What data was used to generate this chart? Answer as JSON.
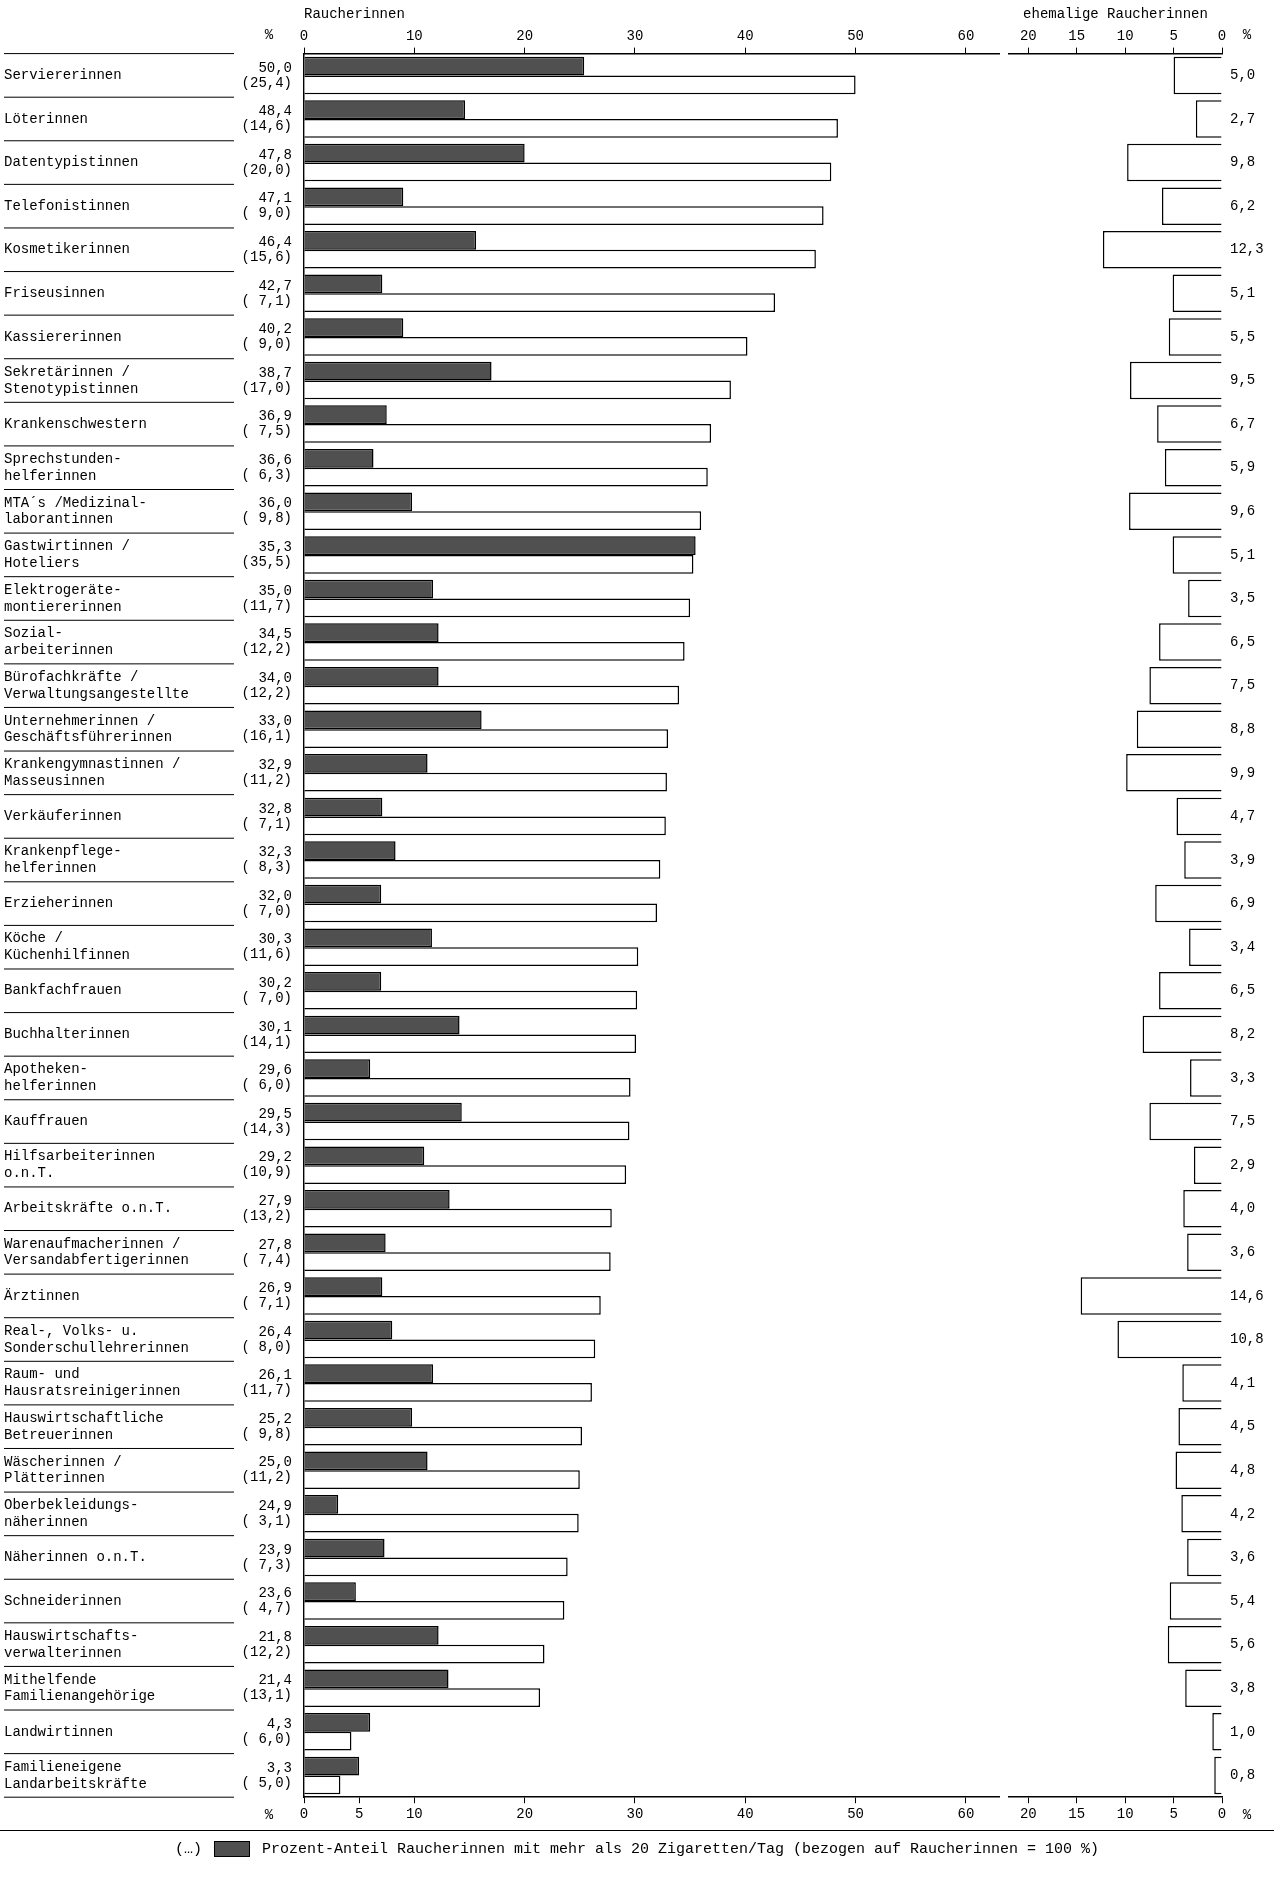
{
  "chart_data": [
    {
      "type": "bar",
      "orientation": "horizontal",
      "x2label": "Raucherinnen",
      "categories": [
        "Serviererinnen",
        "Löterinnen",
        "Datentypistinnen",
        "Telefonistinnen",
        "Kosmetikerinnen",
        "Friseusinnen",
        "Kassiererinnen",
        "Sekretärinnen /\nStenotypistinnen",
        "Krankenschwestern",
        "Sprechstunden-\nhelferinnen",
        "MTA´s /Medizinal-\nlaborantinnen",
        "Gastwirtinnen /\nHoteliers",
        "Elektrogeräte-\nmontiererinnen",
        "Sozial-\narbeiterinnen",
        "Bürofachkräfte /\nVerwaltungsangestellte",
        "Unternehmerinnen /\nGeschäftsführerinnen",
        "Krankengymnastinnen /\nMasseusinnen",
        "Verkäuferinnen",
        "Krankenpflege-\nhelferinnen",
        "Erzieherinnen",
        "Köche /\nKüchenhilfinnen",
        "Bankfachfrauen",
        "Buchhalterinnen",
        "Apotheken-\nhelferinnen",
        "Kauffrauen",
        "Hilfsarbeiterinnen\no.n.T.",
        "Arbeitskräfte o.n.T.",
        "Warenaufmacherinnen /\nVersandabfertigerinnen",
        "Ärztinnen",
        "Real-, Volks- u.\nSonderschullehrerinnen",
        "Raum- und\nHausratsreinigerinnen",
        "Hauswirtschaftliche\nBetreuerinnen",
        "Wäscherinnen /\nPlätterinnen",
        "Oberbekleidungs-\nnäherinnen",
        "Näherinnen o.n.T.",
        "Schneiderinnen",
        "Hauswirtschafts-\nverwalterinnen",
        "Mithelfende\nFamilienangehörige",
        "Landwirtinnen",
        "Familieneigene\nLandarbeitskräfte"
      ],
      "series": [
        {
          "color": "#ffffff",
          "values": [
            50.0,
            48.4,
            47.8,
            47.1,
            46.4,
            42.7,
            40.2,
            38.7,
            36.9,
            36.6,
            36.0,
            35.3,
            35.0,
            34.5,
            34.0,
            33.0,
            32.9,
            32.8,
            32.3,
            32.0,
            30.3,
            30.2,
            30.1,
            29.6,
            29.5,
            29.2,
            27.9,
            27.8,
            26.9,
            26.4,
            26.1,
            25.2,
            25.0,
            24.9,
            23.9,
            23.6,
            21.8,
            21.4,
            4.3,
            3.3
          ],
          "value_labels": [
            "50,0",
            "48,4",
            "47,8",
            "47,1",
            "46,4",
            "42,7",
            "40,2",
            "38,7",
            "36,9",
            "36,6",
            "36,0",
            "35,3",
            "35,0",
            "34,5",
            "34,0",
            "33,0",
            "32,9",
            "32,8",
            "32,3",
            "32,0",
            "30,3",
            "30,2",
            "30,1",
            "29,6",
            "29,5",
            "29,2",
            "27,9",
            "27,8",
            "26,9",
            "26,4",
            "26,1",
            "25,2",
            "25,0",
            "24,9",
            "23,9",
            "23,6",
            "21,8",
            "21,4",
            "4,3",
            "3,3"
          ]
        },
        {
          "name": "Prozent-Anteil Raucherinnen mit mehr als 20 Zigaretten/Tag (bezogen auf Raucherinnen = 100 %)",
          "color": "#505050",
          "values": [
            25.4,
            14.6,
            20.0,
            9.0,
            15.6,
            7.1,
            9.0,
            17.0,
            7.5,
            6.3,
            9.8,
            35.5,
            11.7,
            12.2,
            12.2,
            16.1,
            11.2,
            7.1,
            8.3,
            7.0,
            11.6,
            7.0,
            14.1,
            6.0,
            14.3,
            10.9,
            13.2,
            7.4,
            7.1,
            8.0,
            11.7,
            9.8,
            11.2,
            3.1,
            7.3,
            4.7,
            12.2,
            13.1,
            6.0,
            5.0
          ],
          "value_labels": [
            "(25,4)",
            "(14,6)",
            "(20,0)",
            "( 9,0)",
            "(15,6)",
            "( 7,1)",
            "( 9,0)",
            "(17,0)",
            "( 7,5)",
            "( 6,3)",
            "( 9,8)",
            "(35,5)",
            "(11,7)",
            "(12,2)",
            "(12,2)",
            "(16,1)",
            "(11,2)",
            "( 7,1)",
            "( 8,3)",
            "( 7,0)",
            "(11,6)",
            "( 7,0)",
            "(14,1)",
            "( 6,0)",
            "(14,3)",
            "(10,9)",
            "(13,2)",
            "( 7,4)",
            "( 7,1)",
            "( 8,0)",
            "(11,7)",
            "( 9,8)",
            "(11,2)",
            "( 3,1)",
            "( 7,3)",
            "( 4,7)",
            "(12,2)",
            "(13,1)",
            "( 6,0)",
            "( 5,0)"
          ]
        }
      ],
      "xlim": [
        0,
        63
      ],
      "xticks": [
        0,
        5,
        10,
        20,
        30,
        40,
        50,
        60
      ],
      "x2lim": [
        0,
        63
      ],
      "x2ticks": [
        0,
        10,
        20,
        30,
        40,
        50,
        60
      ],
      "legend": "bottom",
      "annotations": [
        "%",
        "%",
        "(…)"
      ]
    },
    {
      "type": "bar",
      "orientation": "horizontal",
      "x2label": "ehemalige Raucherinnen",
      "categories": [
        null,
        null,
        null,
        null,
        null,
        null,
        null,
        null,
        null,
        null,
        null,
        null,
        null,
        null,
        null,
        null,
        null,
        null,
        null,
        null,
        null,
        null,
        null,
        null,
        null,
        null,
        null,
        null,
        null,
        null,
        null,
        null,
        null,
        null,
        null,
        null,
        null,
        null,
        null,
        null
      ],
      "series": [
        {
          "color": "#ffffff",
          "values": [
            5.0,
            2.7,
            9.8,
            6.2,
            12.3,
            5.1,
            5.5,
            9.5,
            6.7,
            5.9,
            9.6,
            5.1,
            3.5,
            6.5,
            7.5,
            8.8,
            9.9,
            4.7,
            3.9,
            6.9,
            3.4,
            6.5,
            8.2,
            3.3,
            7.5,
            2.9,
            4.0,
            3.6,
            14.6,
            10.8,
            4.1,
            4.5,
            4.8,
            4.2,
            3.6,
            5.4,
            5.6,
            3.8,
            1.0,
            0.8
          ],
          "value_labels": [
            "5,0",
            "2,7",
            "9,8",
            "6,2",
            "12,3",
            "5,1",
            "5,5",
            "9,5",
            "6,7",
            "5,9",
            "9,6",
            "5,1",
            "3,5",
            "6,5",
            "7,5",
            "8,8",
            "9,9",
            "4,7",
            "3,9",
            "6,9",
            "3,4",
            "6,5",
            "8,2",
            "3,3",
            "7,5",
            "2,9",
            "4,0",
            "3,6",
            "14,6",
            "10,8",
            "4,1",
            "4,5",
            "4,8",
            "4,2",
            "3,6",
            "5,4",
            "5,6",
            "3,8",
            "1,0",
            "0,8"
          ]
        }
      ],
      "xlim": [
        22,
        0
      ],
      "xticks": [
        20,
        15,
        10,
        5,
        0
      ],
      "x2lim": [
        22,
        0
      ],
      "x2ticks": [
        20,
        15,
        10,
        5,
        0
      ],
      "tick_labels": "x",
      "annotations": [
        "%",
        "%"
      ]
    }
  ]
}
